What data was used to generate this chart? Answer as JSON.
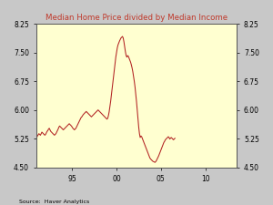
{
  "title": "Median Home Price divided by Median Income",
  "title_color": "#c0392b",
  "background_color": "#ffffd0",
  "outer_background": "#c8c8c8",
  "line_color": "#b22222",
  "source_text": "Source:  Haver Analytics",
  "ylim": [
    4.5,
    8.25
  ],
  "yticks": [
    4.5,
    5.25,
    6.0,
    6.75,
    7.5,
    8.25
  ],
  "xlim": [
    1991.0,
    2013.5
  ],
  "x_tick_years": [
    1995,
    2000,
    2005,
    2010
  ],
  "x_tick_labels": [
    "95",
    "00",
    "05",
    "10"
  ],
  "x_start_year": 1991,
  "data": [
    5.28,
    5.32,
    5.35,
    5.38,
    5.36,
    5.34,
    5.38,
    5.42,
    5.4,
    5.38,
    5.36,
    5.34,
    5.36,
    5.4,
    5.44,
    5.46,
    5.5,
    5.52,
    5.48,
    5.44,
    5.42,
    5.4,
    5.38,
    5.36,
    5.34,
    5.36,
    5.38,
    5.42,
    5.46,
    5.5,
    5.55,
    5.58,
    5.56,
    5.54,
    5.52,
    5.5,
    5.48,
    5.5,
    5.52,
    5.54,
    5.56,
    5.58,
    5.6,
    5.62,
    5.64,
    5.62,
    5.6,
    5.58,
    5.55,
    5.52,
    5.5,
    5.48,
    5.5,
    5.52,
    5.56,
    5.6,
    5.64,
    5.68,
    5.72,
    5.76,
    5.8,
    5.82,
    5.85,
    5.88,
    5.9,
    5.92,
    5.94,
    5.96,
    5.94,
    5.92,
    5.9,
    5.88,
    5.86,
    5.84,
    5.82,
    5.84,
    5.86,
    5.88,
    5.9,
    5.92,
    5.94,
    5.96,
    5.98,
    6.0,
    5.98,
    5.96,
    5.94,
    5.92,
    5.9,
    5.88,
    5.86,
    5.84,
    5.82,
    5.8,
    5.78,
    5.76,
    5.78,
    5.85,
    5.95,
    6.08,
    6.22,
    6.38,
    6.55,
    6.72,
    6.88,
    7.05,
    7.22,
    7.38,
    7.5,
    7.62,
    7.7,
    7.75,
    7.8,
    7.84,
    7.88,
    7.9,
    7.92,
    7.88,
    7.78,
    7.65,
    7.52,
    7.42,
    7.38,
    7.42,
    7.4,
    7.35,
    7.3,
    7.25,
    7.18,
    7.1,
    7.0,
    6.88,
    6.75,
    6.6,
    6.42,
    6.22,
    6.0,
    5.78,
    5.55,
    5.38,
    5.28,
    5.32,
    5.3,
    5.25,
    5.2,
    5.15,
    5.1,
    5.05,
    5.0,
    4.95,
    4.9,
    4.85,
    4.8,
    4.75,
    4.72,
    4.7,
    4.68,
    4.66,
    4.65,
    4.64,
    4.63,
    4.65,
    4.68,
    4.72,
    4.76,
    4.8,
    4.85,
    4.9,
    4.95,
    5.0,
    5.05,
    5.1,
    5.15,
    5.18,
    5.22,
    5.24,
    5.26,
    5.28,
    5.3,
    5.28,
    5.24,
    5.26,
    5.28,
    5.26,
    5.24,
    5.22,
    5.24,
    5.26
  ]
}
